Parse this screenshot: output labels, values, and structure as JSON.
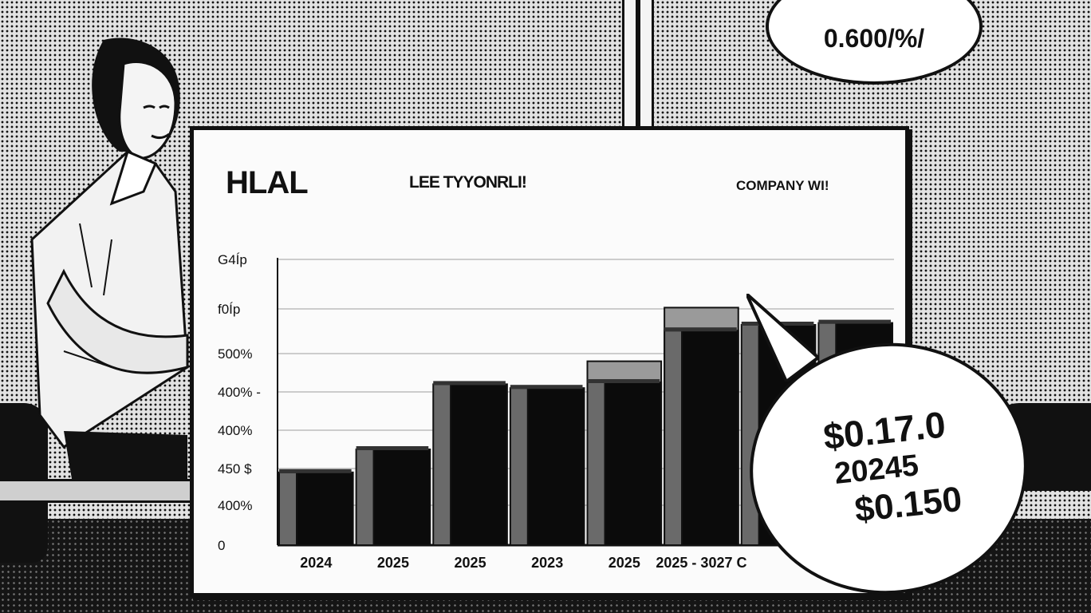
{
  "board": {
    "title": "HLAL",
    "subtitle": "LEE TYYONRLI!",
    "company_label": "COMPANY WI!"
  },
  "bubbles": {
    "top": "0.600/%/",
    "main_line1": "$0.17.0",
    "main_line2": "20245",
    "main_line3": "$0.150"
  },
  "chart_data": {
    "type": "bar",
    "title": "HLAL",
    "xlabel": "",
    "ylabel": "",
    "y_tick_labels": [
      "0",
      "400%",
      "450 $",
      "400%",
      "400% -",
      "500%",
      "f0Íp",
      "G4Íp"
    ],
    "categories": [
      "2024",
      "2025",
      "2025",
      "2023",
      "2025",
      "2025 - 3027 C",
      "",
      ""
    ],
    "values": [
      1.9,
      2.5,
      4.2,
      4.1,
      4.25,
      5.6,
      5.75,
      5.8
    ],
    "step_values": [
      null,
      null,
      null,
      null,
      4.8,
      6.2,
      null,
      null
    ],
    "ylim": [
      0,
      7.5
    ],
    "grid": true,
    "colors": {
      "bar_front": "#0b0b0b",
      "bar_side": "#6a6a6a",
      "grid": "#bdbdbd"
    }
  }
}
